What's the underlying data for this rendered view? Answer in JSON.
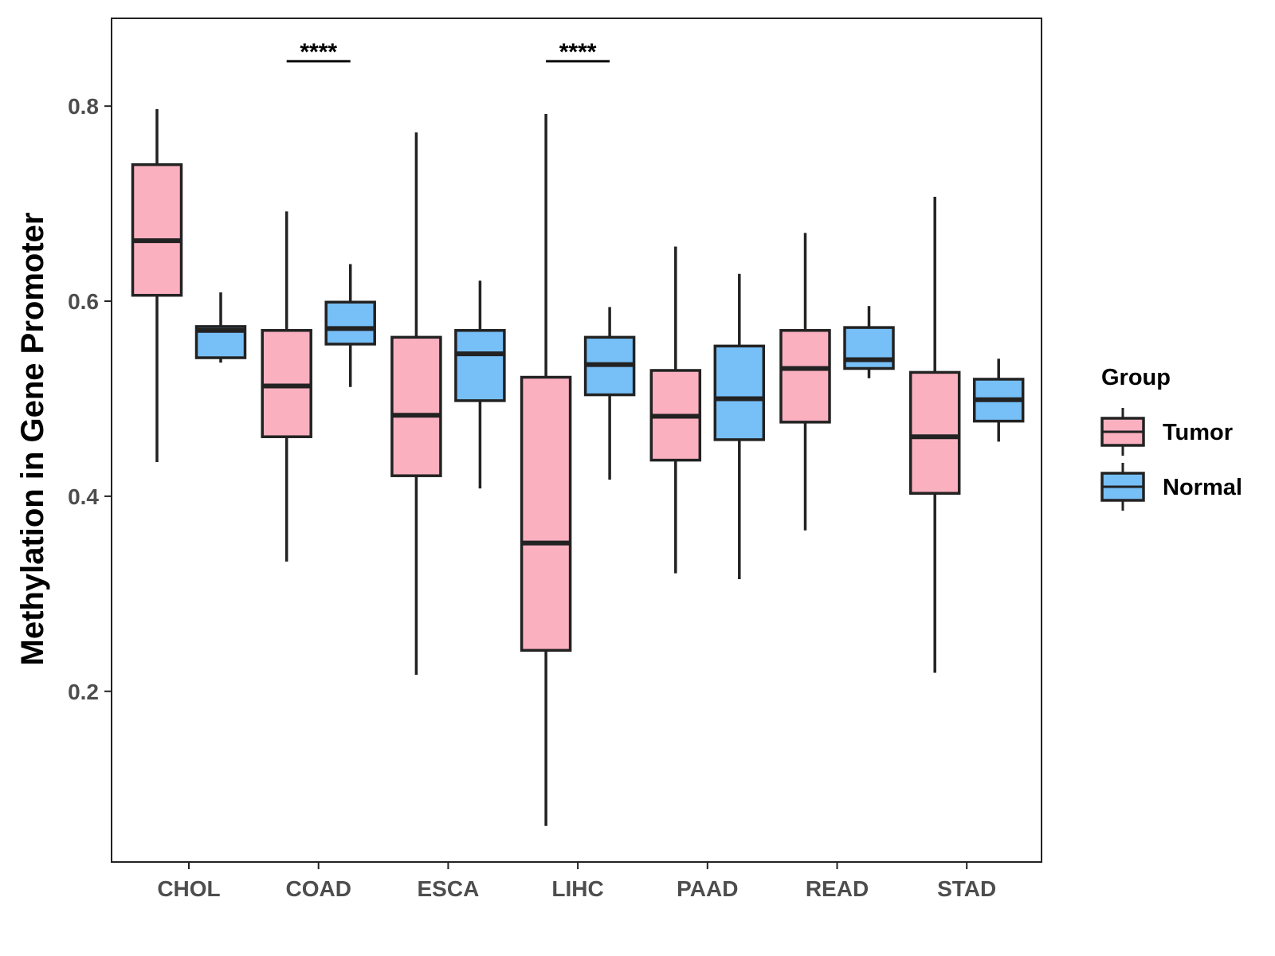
{
  "chart_data": {
    "type": "boxplot",
    "title": "",
    "xlabel": "",
    "ylabel": "Methylation in Gene Promoter",
    "ylim": [
      0.025,
      0.89
    ],
    "yticks": [
      0.2,
      0.4,
      0.6,
      0.8
    ],
    "ytick_labels": [
      "0.2",
      "0.4",
      "0.6",
      "0.8"
    ],
    "grid": false,
    "legend": {
      "title": "Group",
      "position": "right",
      "entries": [
        {
          "name": "Tumor",
          "color": "#fbb0c0"
        },
        {
          "name": "Normal",
          "color": "#77bff7"
        }
      ]
    },
    "categories": [
      "CHOL",
      "COAD",
      "ESCA",
      "LIHC",
      "PAAD",
      "READ",
      "STAD"
    ],
    "series": [
      {
        "name": "Tumor",
        "color": "#fbb0c0",
        "boxes": [
          {
            "min": 0.435,
            "q1": 0.606,
            "median": 0.662,
            "q3": 0.74,
            "max": 0.797
          },
          {
            "min": 0.333,
            "q1": 0.461,
            "median": 0.513,
            "q3": 0.57,
            "max": 0.692
          },
          {
            "min": 0.217,
            "q1": 0.421,
            "median": 0.483,
            "q3": 0.563,
            "max": 0.773
          },
          {
            "min": 0.062,
            "q1": 0.242,
            "median": 0.352,
            "q3": 0.522,
            "max": 0.792
          },
          {
            "min": 0.321,
            "q1": 0.437,
            "median": 0.482,
            "q3": 0.529,
            "max": 0.656
          },
          {
            "min": 0.365,
            "q1": 0.476,
            "median": 0.531,
            "q3": 0.57,
            "max": 0.67
          },
          {
            "min": 0.219,
            "q1": 0.403,
            "median": 0.461,
            "q3": 0.527,
            "max": 0.707
          }
        ]
      },
      {
        "name": "Normal",
        "color": "#77bff7",
        "boxes": [
          {
            "min": 0.537,
            "q1": 0.542,
            "median": 0.57,
            "q3": 0.574,
            "max": 0.609
          },
          {
            "min": 0.512,
            "q1": 0.556,
            "median": 0.572,
            "q3": 0.599,
            "max": 0.638
          },
          {
            "min": 0.408,
            "q1": 0.498,
            "median": 0.546,
            "q3": 0.57,
            "max": 0.621
          },
          {
            "min": 0.417,
            "q1": 0.504,
            "median": 0.535,
            "q3": 0.563,
            "max": 0.594
          },
          {
            "min": 0.315,
            "q1": 0.458,
            "median": 0.5,
            "q3": 0.554,
            "max": 0.628
          },
          {
            "min": 0.521,
            "q1": 0.531,
            "median": 0.54,
            "q3": 0.573,
            "max": 0.595
          },
          {
            "min": 0.456,
            "q1": 0.477,
            "median": 0.499,
            "q3": 0.52,
            "max": 0.541
          }
        ]
      }
    ],
    "annotations": [
      {
        "category": "COAD",
        "label": "****",
        "y": 0.846
      },
      {
        "category": "LIHC",
        "label": "****",
        "y": 0.846
      }
    ]
  }
}
